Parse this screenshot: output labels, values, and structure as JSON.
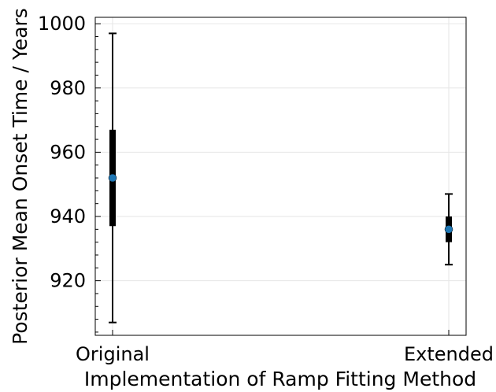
{
  "chart_data": {
    "type": "scatter",
    "title": "",
    "xlabel": "Implementation of Ramp Fitting Method",
    "ylabel": "Posterior Mean Onset Time / Years",
    "categories": [
      "Original",
      "Extended"
    ],
    "ylim": [
      903,
      1002
    ],
    "yticks": [
      920,
      940,
      960,
      980,
      1000
    ],
    "grid": true,
    "point_color": "#1f77b4",
    "series": [
      {
        "values": [
          952,
          936
        ],
        "inner_interval": [
          [
            937,
            967
          ],
          [
            932,
            940
          ]
        ],
        "outer_interval": [
          [
            907,
            997
          ],
          [
            925,
            947
          ]
        ]
      }
    ]
  }
}
